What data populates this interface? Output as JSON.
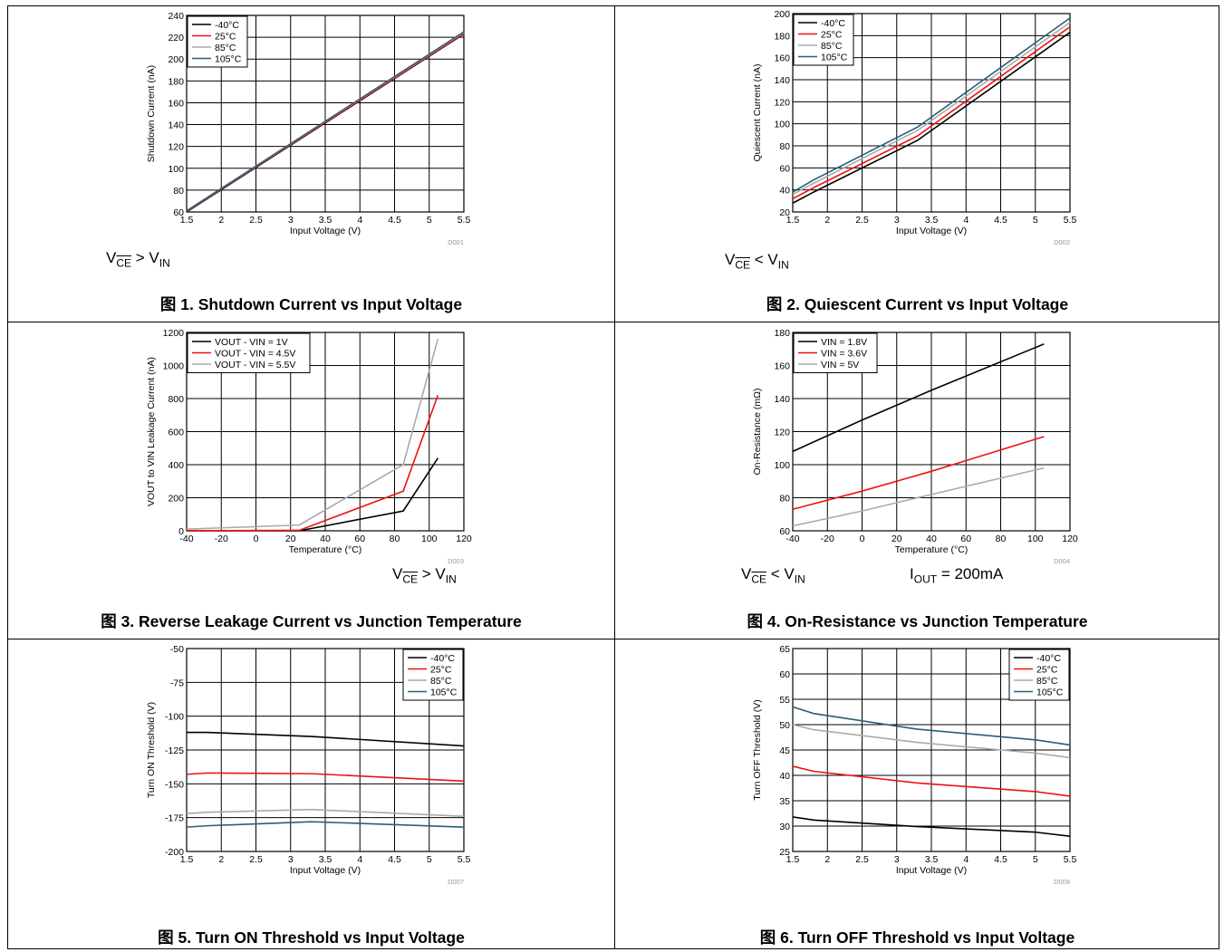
{
  "chart_data": [
    {
      "type": "line",
      "xlabel": "Input Voltage (V)",
      "ylabel": "Shutdown Current (nA)",
      "xlim": [
        1.5,
        5.5
      ],
      "ylim": [
        60,
        240
      ],
      "xticks": [
        1.5,
        2,
        2.5,
        3,
        3.5,
        4,
        4.5,
        5,
        5.5
      ],
      "yticks": [
        60,
        80,
        100,
        120,
        140,
        160,
        180,
        200,
        220,
        240
      ],
      "legend_position": "top-left",
      "code": "D001",
      "condition": {
        "vce": "V",
        "vce_sub": "CE",
        "rel": ">",
        "vin": "V",
        "vin_sub": "IN"
      },
      "caption": "图 1. Shutdown Current vs Input Voltage",
      "series": [
        {
          "name": "-40°C",
          "color": "#000000",
          "x": [
            1.5,
            5.5
          ],
          "y": [
            60,
            223
          ]
        },
        {
          "name": "25°C",
          "color": "#ee1111",
          "x": [
            1.5,
            5.5
          ],
          "y": [
            60.5,
            223.5
          ]
        },
        {
          "name": "85°C",
          "color": "#aaaaaa",
          "x": [
            1.5,
            5.5
          ],
          "y": [
            61,
            224.5
          ]
        },
        {
          "name": "105°C",
          "color": "#2a5d7a",
          "x": [
            1.5,
            5.5
          ],
          "y": [
            61,
            225
          ]
        }
      ]
    },
    {
      "type": "line",
      "xlabel": "Input Voltage (V)",
      "ylabel": "Quiescent Current (nA)",
      "xlim": [
        1.5,
        5.5
      ],
      "ylim": [
        20,
        200
      ],
      "xticks": [
        1.5,
        2,
        2.5,
        3,
        3.5,
        4,
        4.5,
        5,
        5.5
      ],
      "yticks": [
        20,
        40,
        60,
        80,
        100,
        120,
        140,
        160,
        180,
        200
      ],
      "legend_position": "top-left",
      "code": "D002",
      "condition": {
        "vce": "V",
        "vce_sub": "CE",
        "rel": "<",
        "vin": "V",
        "vin_sub": "IN"
      },
      "caption": "图 2. Quiescent Current vs Input Voltage",
      "series": [
        {
          "name": "-40°C",
          "color": "#000000",
          "x": [
            1.5,
            1.8,
            3.3,
            5.5
          ],
          "y": [
            28,
            38,
            85,
            183
          ]
        },
        {
          "name": "25°C",
          "color": "#ee1111",
          "x": [
            1.5,
            1.8,
            3.3,
            5.5
          ],
          "y": [
            32,
            42,
            89,
            188
          ]
        },
        {
          "name": "85°C",
          "color": "#aaaaaa",
          "x": [
            1.5,
            1.8,
            3.3,
            5.5
          ],
          "y": [
            36,
            46,
            94,
            192
          ]
        },
        {
          "name": "105°C",
          "color": "#2a5d7a",
          "x": [
            1.5,
            1.8,
            3.3,
            5.5
          ],
          "y": [
            38,
            49,
            97,
            196
          ]
        }
      ]
    },
    {
      "type": "line",
      "xlabel": "Temperature (°C)",
      "ylabel": "VOUT to VIN Leakage Current (nA)",
      "xlim": [
        -40,
        120
      ],
      "ylim": [
        0,
        1200
      ],
      "xticks": [
        -40,
        -20,
        0,
        20,
        40,
        60,
        80,
        100,
        120
      ],
      "yticks": [
        0,
        200,
        400,
        600,
        800,
        1000,
        1200
      ],
      "legend_position": "top-left",
      "code": "D003",
      "condition": {
        "vce": "V",
        "vce_sub": "CE",
        "rel": ">",
        "vin": "V",
        "vin_sub": "IN"
      },
      "caption": "图 3. Reverse Leakage Current vs Junction Temperature",
      "series": [
        {
          "name": "VOUT - VIN = 1V",
          "color": "#000000",
          "x": [
            -40,
            25,
            85,
            105
          ],
          "y": [
            0,
            0,
            120,
            440
          ]
        },
        {
          "name": "VOUT - VIN = 4.5V",
          "color": "#ee1111",
          "x": [
            -40,
            25,
            85,
            105
          ],
          "y": [
            0,
            3,
            240,
            820
          ]
        },
        {
          "name": "VOUT - VIN = 5.5V",
          "color": "#aaaaaa",
          "x": [
            -40,
            25,
            85,
            105
          ],
          "y": [
            10,
            35,
            400,
            1160
          ]
        }
      ]
    },
    {
      "type": "line",
      "xlabel": "Temperature (°C)",
      "ylabel": "On-Resistance (mΩ)",
      "xlim": [
        -40,
        120
      ],
      "ylim": [
        60,
        180
      ],
      "xticks": [
        -40,
        -20,
        0,
        20,
        40,
        60,
        80,
        100,
        120
      ],
      "yticks": [
        60,
        80,
        100,
        120,
        140,
        160,
        180
      ],
      "legend_position": "top-left",
      "code": "D004",
      "condition": {
        "vce": "V",
        "vce_sub": "CE",
        "rel": "<",
        "vin": "V",
        "vin_sub": "IN",
        "iout": "I",
        "iout_sub": "OUT",
        "iout_val": "= 200mA"
      },
      "caption": "图 4. On-Resistance vs Junction Temperature",
      "series": [
        {
          "name": "VIN = 1.8V",
          "color": "#000000",
          "x": [
            -40,
            0,
            40,
            105
          ],
          "y": [
            108,
            127,
            145,
            173
          ]
        },
        {
          "name": "VIN = 3.6V",
          "color": "#ee1111",
          "x": [
            -40,
            0,
            40,
            105
          ],
          "y": [
            73,
            84,
            96,
            117
          ]
        },
        {
          "name": "VIN = 5V",
          "color": "#aaaaaa",
          "x": [
            -40,
            0,
            40,
            105
          ],
          "y": [
            63,
            72,
            82,
            98
          ]
        }
      ]
    },
    {
      "type": "line",
      "xlabel": "Input Voltage (V)",
      "ylabel": "Turn ON Threshold (V)",
      "xlim": [
        1.5,
        5.5
      ],
      "ylim": [
        -200,
        -50
      ],
      "xticks": [
        1.5,
        2,
        2.5,
        3,
        3.5,
        4,
        4.5,
        5,
        5.5
      ],
      "yticks": [
        -200,
        -175,
        -150,
        -125,
        -100,
        -75,
        -50
      ],
      "legend_position": "top-right",
      "code": "D007",
      "caption": "图 5. Turn ON Threshold vs Input Voltage",
      "series": [
        {
          "name": "-40°C",
          "color": "#000000",
          "x": [
            1.5,
            1.8,
            3.3,
            5.5
          ],
          "y": [
            -112,
            -112,
            -115,
            -122
          ]
        },
        {
          "name": "25°C",
          "color": "#ee1111",
          "x": [
            1.5,
            1.8,
            3.3,
            5.5
          ],
          "y": [
            -143,
            -142,
            -142.5,
            -148
          ]
        },
        {
          "name": "85°C",
          "color": "#aaaaaa",
          "x": [
            1.5,
            1.8,
            3.3,
            5.5
          ],
          "y": [
            -172,
            -171,
            -169,
            -174
          ]
        },
        {
          "name": "105°C",
          "color": "#2a5d7a",
          "x": [
            1.5,
            1.8,
            3.3,
            5.5
          ],
          "y": [
            -182,
            -181,
            -178,
            -182
          ]
        }
      ]
    },
    {
      "type": "line",
      "xlabel": "Input Voltage (V)",
      "ylabel": "Turn OFF Threshold (V)",
      "xlim": [
        1.5,
        5.5
      ],
      "ylim": [
        25,
        65
      ],
      "xticks": [
        1.5,
        2,
        2.5,
        3,
        3.5,
        4,
        4.5,
        5,
        5.5
      ],
      "yticks": [
        25,
        30,
        35,
        40,
        45,
        50,
        55,
        60,
        65
      ],
      "legend_position": "top-right",
      "code": "D008",
      "caption": "图 6. Turn OFF Threshold vs Input Voltage",
      "series": [
        {
          "name": "-40°C",
          "color": "#000000",
          "x": [
            1.5,
            1.8,
            3.3,
            5,
            5.5
          ],
          "y": [
            31.8,
            31.2,
            29.9,
            28.8,
            28
          ]
        },
        {
          "name": "25°C",
          "color": "#ee1111",
          "x": [
            1.5,
            1.8,
            3.3,
            5,
            5.5
          ],
          "y": [
            41.8,
            40.8,
            38.5,
            36.8,
            35.9
          ]
        },
        {
          "name": "85°C",
          "color": "#aaaaaa",
          "x": [
            1.5,
            1.8,
            3.3,
            5,
            5.5
          ],
          "y": [
            50,
            49,
            46.5,
            44.4,
            43.5
          ]
        },
        {
          "name": "105°C",
          "color": "#2a5d7a",
          "x": [
            1.5,
            1.8,
            3.3,
            5,
            5.5
          ],
          "y": [
            53.5,
            52.2,
            49.1,
            47,
            46
          ]
        }
      ]
    }
  ]
}
